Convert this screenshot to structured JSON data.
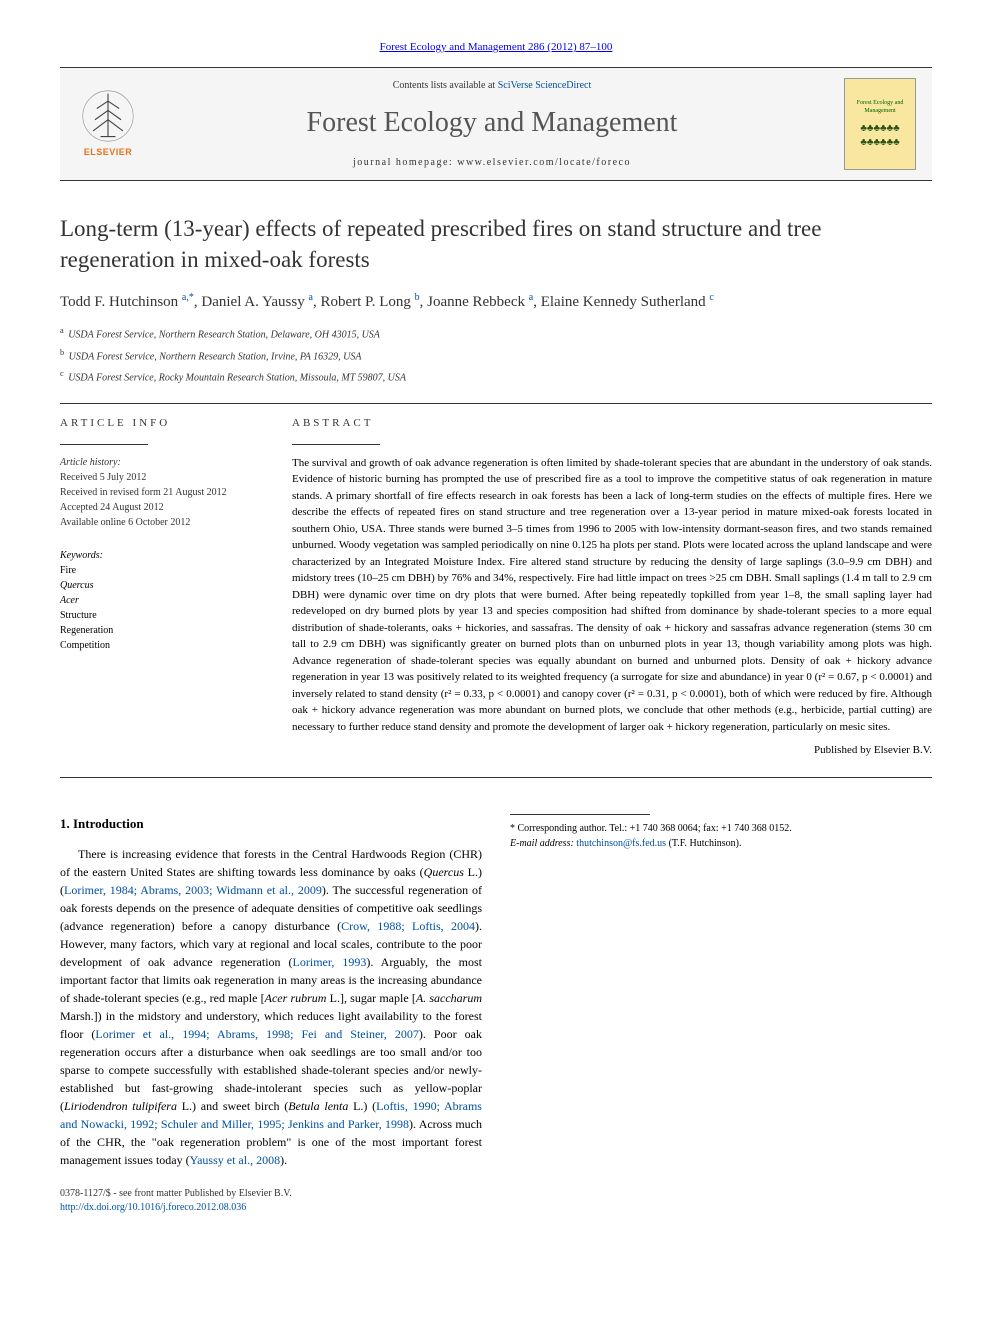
{
  "journal_ref": {
    "text": "Forest Ecology and Management 286 (2012) 87–100",
    "color": "#0050a0"
  },
  "header": {
    "contents_prefix": "Contents lists available at ",
    "contents_link": "SciVerse ScienceDirect",
    "journal_name": "Forest Ecology and Management",
    "homepage_prefix": "journal homepage: ",
    "homepage_url": "www.elsevier.com/locate/foreco",
    "elsevier_label": "ELSEVIER",
    "cover_title": "Forest Ecology and Management"
  },
  "title": "Long-term (13-year) effects of repeated prescribed fires on stand structure and tree regeneration in mixed-oak forests",
  "authors_html": "Todd F. Hutchinson <sup>a,*</sup>, Daniel A. Yaussy <sup>a</sup>, Robert P. Long <sup>b</sup>, Joanne Rebbeck <sup>a</sup>, Elaine Kennedy Sutherland <sup>c</sup>",
  "affiliations": [
    {
      "sup": "a",
      "text": "USDA Forest Service, Northern Research Station, Delaware, OH 43015, USA"
    },
    {
      "sup": "b",
      "text": "USDA Forest Service, Northern Research Station, Irvine, PA 16329, USA"
    },
    {
      "sup": "c",
      "text": "USDA Forest Service, Rocky Mountain Research Station, Missoula, MT 59807, USA"
    }
  ],
  "article_info_heading": "article info",
  "abstract_heading": "abstract",
  "history": {
    "label": "Article history:",
    "lines": [
      "Received 5 July 2012",
      "Received in revised form 21 August 2012",
      "Accepted 24 August 2012",
      "Available online 6 October 2012"
    ]
  },
  "keywords": {
    "label": "Keywords:",
    "items": [
      "Fire",
      "Quercus",
      "Acer",
      "Structure",
      "Regeneration",
      "Competition"
    ]
  },
  "abstract": "The survival and growth of oak advance regeneration is often limited by shade-tolerant species that are abundant in the understory of oak stands. Evidence of historic burning has prompted the use of prescribed fire as a tool to improve the competitive status of oak regeneration in mature stands. A primary shortfall of fire effects research in oak forests has been a lack of long-term studies on the effects of multiple fires. Here we describe the effects of repeated fires on stand structure and tree regeneration over a 13-year period in mature mixed-oak forests located in southern Ohio, USA. Three stands were burned 3–5 times from 1996 to 2005 with low-intensity dormant-season fires, and two stands remained unburned. Woody vegetation was sampled periodically on nine 0.125 ha plots per stand. Plots were located across the upland landscape and were characterized by an Integrated Moisture Index. Fire altered stand structure by reducing the density of large saplings (3.0–9.9 cm DBH) and midstory trees (10–25 cm DBH) by 76% and 34%, respectively. Fire had little impact on trees >25 cm DBH. Small saplings (1.4 m tall to 2.9 cm DBH) were dynamic over time on dry plots that were burned. After being repeatedly topkilled from year 1–8, the small sapling layer had redeveloped on dry burned plots by year 13 and species composition had shifted from dominance by shade-tolerant species to a more equal distribution of shade-tolerants, oaks + hickories, and sassafras. The density of oak + hickory and sassafras advance regeneration (stems 30 cm tall to 2.9 cm DBH) was significantly greater on burned plots than on unburned plots in year 13, though variability among plots was high. Advance regeneration of shade-tolerant species was equally abundant on burned and unburned plots. Density of oak + hickory advance regeneration in year 13 was positively related to its weighted frequency (a surrogate for size and abundance) in year 0 (r² = 0.67, p < 0.0001) and inversely related to stand density (r² = 0.33, p < 0.0001) and canopy cover (r² = 0.31, p < 0.0001), both of which were reduced by fire. Although oak + hickory advance regeneration was more abundant on burned plots, we conclude that other methods (e.g., herbicide, partial cutting) are necessary to further reduce stand density and promote the development of larger oak + hickory regeneration, particularly on mesic sites.",
  "publisher_line": "Published by Elsevier B.V.",
  "intro": {
    "heading": "1. Introduction",
    "paragraph_html": "There is increasing evidence that forests in the Central Hardwoods Region (CHR) of the eastern United States are shifting towards less dominance by oaks (<em class='kw'>Quercus</em> L.) (<a href='#'>Lorimer, 1984; Abrams, 2003; Widmann et al., 2009</a>). The successful regeneration of oak forests depends on the presence of adequate densities of competitive oak seedlings (advance regeneration) before a canopy disturbance (<a href='#'>Crow, 1988; Loftis, 2004</a>). However, many factors, which vary at regional and local scales, contribute to the poor development of oak advance regeneration (<a href='#'>Lorimer, 1993</a>). Arguably, the most important factor that limits oak regeneration in many areas is the increasing abundance of shade-tolerant species (e.g., red maple [<em class='kw'>Acer rubrum</em> L.], sugar maple [<em class='kw'>A. saccharum</em> Marsh.]) in the midstory and understory, which reduces light availability to the forest floor (<a href='#'>Lorimer et al., 1994; Abrams, 1998; Fei and Steiner, 2007</a>). Poor oak regeneration occurs after a disturbance when oak seedlings are too small and/or too sparse to compete successfully with established shade-tolerant species and/or newly-established but fast-growing shade-intolerant species such as yellow-poplar (<em class='kw'>Liriodendron tulipifera</em> L.) and sweet birch (<em class='kw'>Betula lenta</em> L.) (<a href='#'>Loftis, 1990; Abrams and Nowacki, 1992; Schuler and Miller, 1995; Jenkins and Parker, 1998</a>). Across much of the CHR, the \"oak regeneration problem\" is one of the most important forest management issues today (<a href='#'>Yaussy et al., 2008</a>)."
  },
  "corresponding": {
    "line1_prefix": "* Corresponding author. Tel.: ",
    "tel": "+1 740 368 0064",
    "fax_prefix": "; fax: ",
    "fax": "+1 740 368 0152.",
    "email_label": "E-mail address: ",
    "email": "thutchinson@fs.fed.us",
    "email_suffix": " (T.F. Hutchinson)."
  },
  "footer": {
    "line1": "0378-1127/$ - see front matter Published by Elsevier B.V.",
    "doi": "http://dx.doi.org/10.1016/j.foreco.2012.08.036"
  },
  "colors": {
    "link": "#0050a0",
    "text": "#000000",
    "muted": "#333333",
    "elsevier_orange": "#e9711c",
    "cover_bg": "#f9e79f",
    "header_bg": "#f5f5f5"
  }
}
